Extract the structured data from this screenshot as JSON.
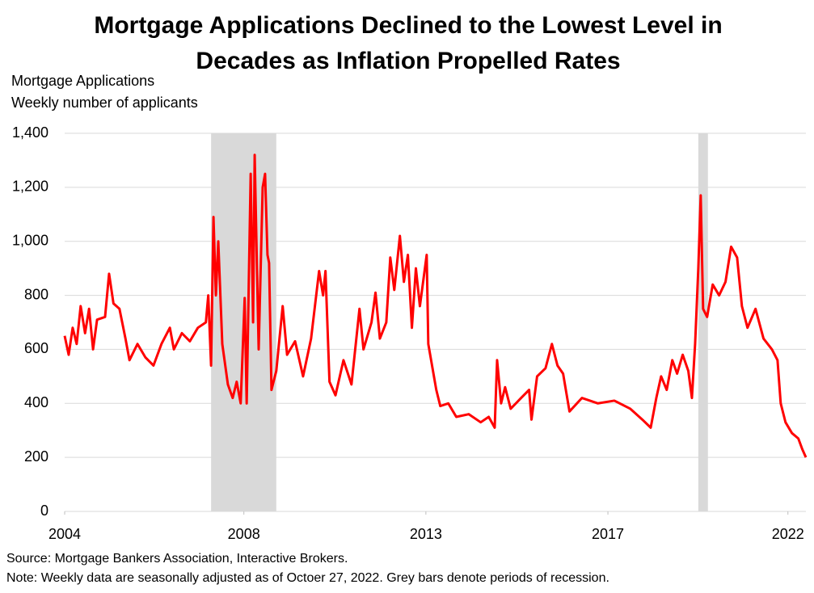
{
  "chart_data": {
    "type": "line",
    "title": "Mortgage Applications Declined to the Lowest Level in Decades as Inflation Propelled Rates",
    "y_label": "Mortgage Applications",
    "subtitle": "Weekly number of applicants",
    "source": "Source: Mortgage Bankers Association, Interactive Brokers.",
    "note": "Note: Weekly data are seasonally adjusted as of Octoer 27, 2022. Grey bars denote periods of recession.",
    "color": "#ff0000",
    "recession_color": "#d9d9d9",
    "recessions": [
      {
        "start": 2007.95,
        "end": 2009.58
      },
      {
        "start": 2020.13,
        "end": 2020.37
      }
    ],
    "xlim": [
      2004.29,
      2022.82
    ],
    "xticks": [
      {
        "value": 2004.29,
        "label": "2004"
      },
      {
        "value": 2008.77,
        "label": "2008"
      },
      {
        "value": 2013.32,
        "label": "2013"
      },
      {
        "value": 2017.87,
        "label": "2017"
      },
      {
        "value": 2022.37,
        "label": "2022"
      }
    ],
    "ylim": [
      0,
      1400
    ],
    "yticks": [
      0,
      200,
      400,
      600,
      800,
      {
        "value": 1000,
        "label": "1,000"
      },
      {
        "value": 1200,
        "label": "1,200"
      },
      {
        "value": 1400,
        "label": "1,400"
      }
    ],
    "grid": true,
    "x": [
      2004.29,
      2004.39,
      2004.49,
      2004.59,
      2004.69,
      2004.8,
      2004.9,
      2005.0,
      2005.1,
      2005.3,
      2005.4,
      2005.51,
      2005.66,
      2005.81,
      2005.91,
      2006.11,
      2006.31,
      2006.51,
      2006.71,
      2006.92,
      2007.02,
      2007.22,
      2007.42,
      2007.62,
      2007.82,
      2007.88,
      2007.95,
      2008.01,
      2008.07,
      2008.13,
      2008.23,
      2008.37,
      2008.49,
      2008.59,
      2008.69,
      2008.79,
      2008.84,
      2008.94,
      2009.0,
      2009.04,
      2009.1,
      2009.14,
      2009.24,
      2009.3,
      2009.36,
      2009.4,
      2009.46,
      2009.58,
      2009.74,
      2009.85,
      2010.05,
      2010.25,
      2010.45,
      2010.65,
      2010.75,
      2010.81,
      2010.91,
      2011.06,
      2011.26,
      2011.46,
      2011.66,
      2011.76,
      2011.96,
      2012.06,
      2012.17,
      2012.33,
      2012.43,
      2012.53,
      2012.67,
      2012.77,
      2012.87,
      2012.97,
      2013.07,
      2013.17,
      2013.34,
      2013.38,
      2013.58,
      2013.68,
      2013.88,
      2014.08,
      2014.39,
      2014.69,
      2014.89,
      2015.04,
      2015.1,
      2015.2,
      2015.3,
      2015.44,
      2015.7,
      2015.9,
      2015.96,
      2016.1,
      2016.31,
      2016.47,
      2016.61,
      2016.75,
      2016.91,
      2017.22,
      2017.62,
      2018.03,
      2018.43,
      2018.73,
      2018.94,
      2019.08,
      2019.2,
      2019.34,
      2019.48,
      2019.6,
      2019.74,
      2019.88,
      2019.97,
      2020.05,
      2020.13,
      2020.19,
      2020.25,
      2020.35,
      2020.49,
      2020.65,
      2020.81,
      2020.95,
      2021.1,
      2021.22,
      2021.36,
      2021.56,
      2021.76,
      2021.97,
      2022.11,
      2022.19,
      2022.31,
      2022.47,
      2022.63,
      2022.73,
      2022.82
    ],
    "values": [
      650,
      580,
      680,
      620,
      760,
      660,
      750,
      600,
      710,
      720,
      880,
      770,
      750,
      640,
      560,
      620,
      570,
      540,
      620,
      680,
      600,
      660,
      630,
      680,
      700,
      800,
      540,
      1090,
      800,
      1000,
      620,
      470,
      420,
      480,
      400,
      790,
      400,
      1250,
      700,
      1320,
      880,
      600,
      1200,
      1250,
      950,
      920,
      450,
      520,
      760,
      580,
      630,
      500,
      640,
      890,
      800,
      890,
      480,
      430,
      560,
      470,
      750,
      600,
      700,
      810,
      640,
      700,
      940,
      820,
      1020,
      850,
      950,
      680,
      900,
      760,
      950,
      620,
      450,
      390,
      400,
      350,
      360,
      330,
      350,
      310,
      560,
      400,
      460,
      380,
      420,
      450,
      340,
      500,
      530,
      620,
      540,
      510,
      370,
      420,
      400,
      410,
      380,
      340,
      310,
      420,
      500,
      450,
      560,
      510,
      580,
      520,
      420,
      620,
      900,
      1170,
      750,
      720,
      840,
      800,
      850,
      980,
      940,
      760,
      680,
      750,
      640,
      600,
      560,
      400,
      330,
      290,
      270,
      230,
      200
    ]
  }
}
